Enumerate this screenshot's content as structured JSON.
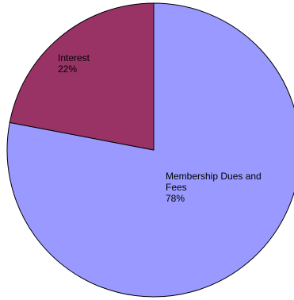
{
  "chart_data": {
    "type": "pie",
    "title": "",
    "slices": [
      {
        "label": "Membership Dues and Fees",
        "value": 78,
        "display": "78%",
        "color": "#9999ff"
      },
      {
        "label": "Interest",
        "value": 22,
        "display": "22%",
        "color": "#993366"
      }
    ],
    "start_angle_deg": 0,
    "direction": "clockwise",
    "legend": "none",
    "outline_color": "#000000"
  }
}
